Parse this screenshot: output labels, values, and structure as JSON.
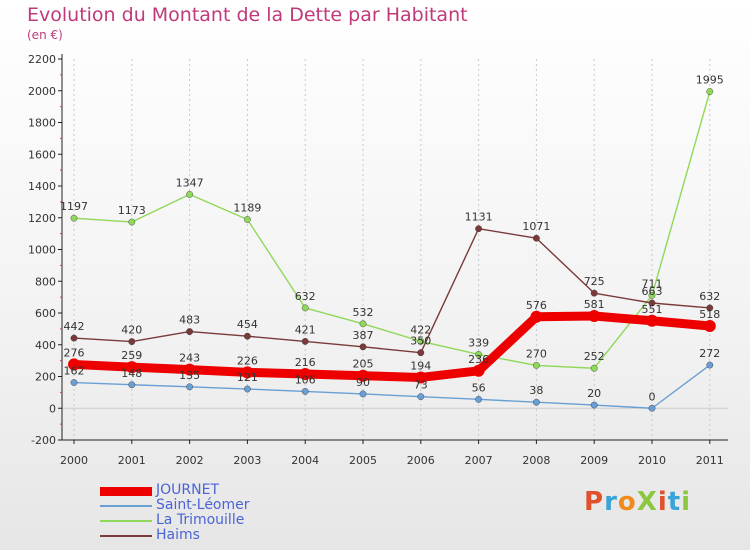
{
  "title": "Evolution du Montant de la Dette par Habitant",
  "unit": "(en €)",
  "logo": "ProXiti",
  "chart_data": {
    "type": "line",
    "categories": [
      "2000",
      "2001",
      "2002",
      "2003",
      "2004",
      "2005",
      "2006",
      "2007",
      "2008",
      "2009",
      "2010",
      "2011"
    ],
    "ylim": [
      -200,
      2200
    ],
    "yticks": [
      -200,
      0,
      200,
      400,
      600,
      800,
      1000,
      1200,
      1400,
      1600,
      1800,
      2000,
      2200
    ],
    "grid": "vertical dashed",
    "legend_position": "bottom-left",
    "series": [
      {
        "name": "JOURNET",
        "color": "#ee0000",
        "values": [
          276,
          259,
          243,
          226,
          216,
          205,
          194,
          236,
          576,
          581,
          551,
          518
        ]
      },
      {
        "name": "Saint-Léomer",
        "color": "#6a9fd4",
        "values": [
          162,
          148,
          135,
          121,
          106,
          90,
          73,
          56,
          38,
          20,
          0,
          272
        ]
      },
      {
        "name": "La Trimouille",
        "color": "#8fd85a",
        "values": [
          1197,
          1173,
          1347,
          1189,
          632,
          532,
          422,
          339,
          270,
          252,
          711,
          1995
        ]
      },
      {
        "name": "Haims",
        "color": "#7a3a3a",
        "values": [
          442,
          420,
          483,
          454,
          421,
          387,
          350,
          1131,
          1071,
          725,
          663,
          632
        ]
      }
    ],
    "data_labels": [
      [
        "276",
        "259",
        "243",
        "226",
        "216",
        "205",
        "194",
        "236",
        "576",
        "581",
        "551",
        "518"
      ],
      [
        "162",
        "148",
        "135",
        "121",
        "106",
        "90",
        "73",
        "56",
        "38",
        "20",
        "0",
        "272"
      ],
      [
        "1197",
        "1173",
        "1347",
        "1189",
        "632",
        "532",
        "422",
        "339",
        "270",
        "252",
        "711",
        "1995"
      ],
      [
        "442",
        "420",
        "483",
        "454",
        "421",
        "387",
        "350",
        "1131",
        "1071",
        "725",
        "663",
        "632"
      ]
    ]
  }
}
